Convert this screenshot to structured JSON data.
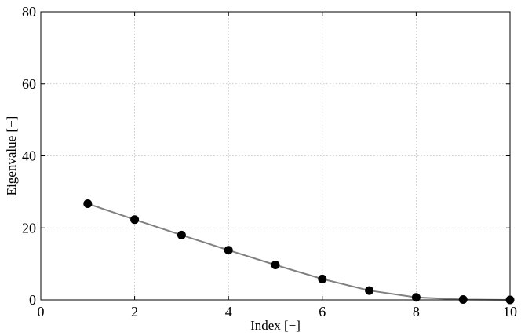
{
  "chart_data": {
    "type": "line",
    "title": "",
    "xlabel": "Index [−]",
    "ylabel": "Eigenvalue [−]",
    "xlim": [
      0,
      10
    ],
    "ylim": [
      0,
      80
    ],
    "xticks": [
      0,
      2,
      4,
      6,
      8,
      10
    ],
    "yticks": [
      0,
      20,
      40,
      60,
      80
    ],
    "grid": true,
    "series": [
      {
        "x": [
          1,
          2,
          3,
          4,
          5,
          6,
          7,
          8,
          9,
          10
        ],
        "y": [
          26.7,
          22.3,
          18.0,
          13.8,
          9.7,
          5.8,
          2.6,
          0.7,
          0.1,
          0.0
        ],
        "marker": "circle",
        "line_color": "#808080",
        "marker_color": "#000000"
      }
    ]
  }
}
